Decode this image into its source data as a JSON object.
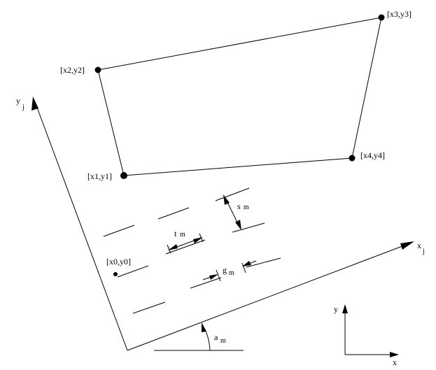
{
  "diagram": {
    "labels": {
      "p1": "[x1,y1]",
      "p2": "[x2,y2]",
      "p3": "[x3,y3]",
      "p4": "[x4,y4]",
      "p0": "[x0,y0]",
      "yj_main": "y",
      "yj_sub": "j",
      "xj_main": "x",
      "xj_sub": "j",
      "sm_main": "s",
      "sm_sub": "m",
      "tm_main": "t",
      "tm_sub": "m",
      "gm_main": "g",
      "gm_sub": "m",
      "am_main": "a",
      "am_sub": "m",
      "global_y": "y",
      "global_x": "x"
    }
  }
}
